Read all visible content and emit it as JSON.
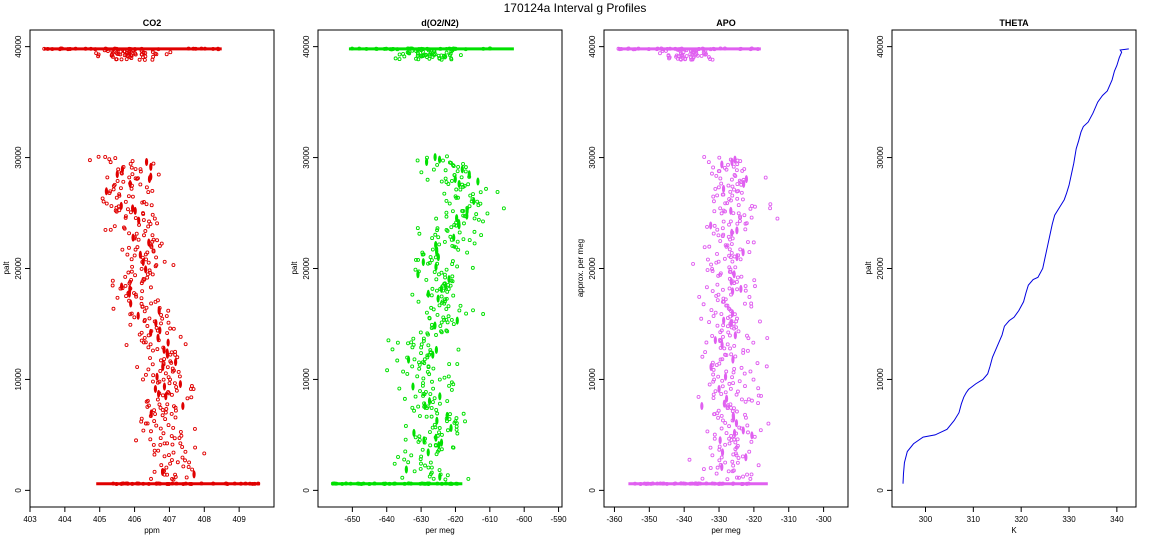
{
  "main_title": "170124a   Interval g Profiles",
  "chart_data": [
    {
      "type": "scatter",
      "title": "CO2",
      "xlabel": "ppm",
      "ylabel": "palt",
      "xlim": [
        403,
        410
      ],
      "ylim": [
        -1500,
        41500
      ],
      "x_ticks": [
        403,
        404,
        405,
        406,
        407,
        408,
        409
      ],
      "y_ticks": [
        0,
        10000,
        20000,
        30000,
        40000
      ],
      "color": "#e00000",
      "marker": "open-circle",
      "profile": {
        "y": [
          600,
          1500,
          2500,
          3500,
          4500,
          5500,
          6500,
          7500,
          8500,
          9500,
          10500,
          11500,
          12500,
          13500,
          14500,
          15500,
          16500,
          17500,
          18500,
          19500,
          20500,
          21500,
          22500,
          23500,
          24500,
          25500,
          26500,
          27500,
          28500,
          29500,
          30000
        ],
        "x": [
          407.0,
          407.1,
          407.2,
          406.8,
          406.9,
          407.0,
          406.6,
          406.9,
          406.8,
          407.0,
          406.7,
          406.9,
          406.8,
          406.6,
          406.7,
          406.4,
          406.5,
          406.2,
          405.9,
          406.3,
          406.5,
          406.1,
          406.4,
          405.8,
          406.2,
          405.9,
          405.5,
          405.8,
          406.0,
          405.9,
          405.4
        ],
        "spread": 0.75,
        "points_per_level": 20
      },
      "surface_band": {
        "y": 600,
        "x_range": [
          404.9,
          409.6
        ]
      },
      "top_band": {
        "y": 39800,
        "x_range": [
          403.4,
          408.5
        ],
        "below_scatter_range": [
          38800,
          39800
        ]
      }
    },
    {
      "type": "scatter",
      "title": "d(O2/N2)",
      "xlabel": "per meg",
      "ylabel": "palt",
      "xlim": [
        -660,
        -589
      ],
      "ylim": [
        -1500,
        41500
      ],
      "x_ticks": [
        -650,
        -640,
        -630,
        -620,
        -610,
        -600,
        -590
      ],
      "y_ticks": [
        0,
        10000,
        20000,
        30000,
        40000
      ],
      "color": "#00e000",
      "marker": "open-circle",
      "profile": {
        "y": [
          600,
          1500,
          2500,
          3500,
          4500,
          5500,
          6500,
          7500,
          8500,
          9500,
          10500,
          11500,
          12500,
          13500,
          14500,
          15500,
          16500,
          17500,
          18500,
          19500,
          20500,
          21500,
          22500,
          23500,
          24500,
          25500,
          26500,
          27500,
          28500,
          29500,
          30000
        ],
        "x": [
          -625,
          -628,
          -630,
          -627,
          -629,
          -624,
          -622,
          -630,
          -628,
          -626,
          -630,
          -629,
          -628,
          -633,
          -624,
          -623,
          -620,
          -626,
          -622,
          -626,
          -627,
          -623,
          -621,
          -621,
          -619,
          -615,
          -618,
          -617,
          -620,
          -622,
          -628
        ],
        "spread": 8,
        "points_per_level": 18
      },
      "surface_band": {
        "y": 600,
        "x_range": [
          -656,
          -618
        ]
      },
      "top_band": {
        "y": 39800,
        "x_range": [
          -651,
          -603
        ],
        "below_scatter_range": [
          38800,
          39800
        ]
      }
    },
    {
      "type": "scatter",
      "title": "APO",
      "xlabel": "per meg",
      "ylabel": "approx. per meg",
      "xlim": [
        -363,
        -293
      ],
      "ylim": [
        -1500,
        41500
      ],
      "x_ticks": [
        -360,
        -350,
        -340,
        -330,
        -320,
        -310,
        -300
      ],
      "y_ticks": [
        0,
        10000,
        20000,
        30000,
        40000
      ],
      "color": "#e060f0",
      "marker": "open-circle",
      "profile": {
        "y": [
          600,
          1500,
          2500,
          3500,
          4500,
          5500,
          6500,
          7500,
          8500,
          9500,
          10500,
          11500,
          12500,
          13500,
          14500,
          15500,
          16500,
          17500,
          18500,
          19500,
          20500,
          21500,
          22500,
          23500,
          24500,
          25500,
          26500,
          27500,
          28500,
          29500,
          30000
        ],
        "x": [
          -326,
          -327,
          -328,
          -326,
          -327,
          -325,
          -326,
          -328,
          -327,
          -326,
          -327,
          -326,
          -327,
          -328,
          -326,
          -327,
          -325,
          -327,
          -326,
          -327,
          -328,
          -326,
          -325,
          -326,
          -325,
          -324,
          -326,
          -325,
          -327,
          -328,
          -330
        ],
        "spread": 8,
        "points_per_level": 18
      },
      "surface_band": {
        "y": 600,
        "x_range": [
          -356,
          -316
        ]
      },
      "top_band": {
        "y": 39800,
        "x_range": [
          -359,
          -318
        ],
        "below_scatter_range": [
          38800,
          39800
        ]
      }
    },
    {
      "type": "line",
      "title": "THETA",
      "xlabel": "K",
      "ylabel": "palt",
      "xlim": [
        293,
        344
      ],
      "ylim": [
        -1500,
        41500
      ],
      "x_ticks": [
        300,
        310,
        320,
        330,
        340
      ],
      "y_ticks": [
        0,
        10000,
        20000,
        30000,
        40000
      ],
      "color": "#0000e0",
      "series": [
        {
          "x": [
            295.3,
            295.4,
            295.6,
            296.2,
            297.5,
            299.5,
            302.0,
            304.5,
            306.0,
            307.0,
            307.5,
            308.0,
            308.5,
            309.0,
            310.5,
            312.0,
            313.0,
            313.5,
            314.0,
            315.0,
            316.0,
            316.5,
            317.5,
            318.5,
            319.5,
            320.5,
            321.0,
            321.5,
            322.5,
            323.5,
            324.5,
            325.0,
            325.5,
            326.0,
            326.5,
            327.0,
            328.0,
            329.0,
            329.5,
            330.0,
            330.5,
            331.0,
            331.5,
            332.0,
            332.5,
            333.0,
            334.0,
            335.0,
            336.0,
            337.0,
            338.0,
            338.5,
            339.0,
            339.5,
            340.0,
            340.5,
            341.0,
            340.7,
            342.5
          ],
          "y": [
            600,
            1500,
            2500,
            3500,
            4200,
            4800,
            5000,
            5500,
            6300,
            7000,
            7800,
            8400,
            8800,
            9100,
            9600,
            10000,
            10500,
            11200,
            12000,
            13000,
            14000,
            14800,
            15300,
            15600,
            16200,
            17000,
            17800,
            18500,
            19000,
            19200,
            20000,
            21000,
            22000,
            23000,
            24000,
            24800,
            25500,
            26200,
            26800,
            27500,
            28500,
            29500,
            30800,
            31500,
            32300,
            32800,
            33200,
            34000,
            35000,
            35600,
            36000,
            36500,
            37000,
            37800,
            38300,
            39000,
            39500,
            39700,
            39800
          ]
        }
      ]
    }
  ]
}
